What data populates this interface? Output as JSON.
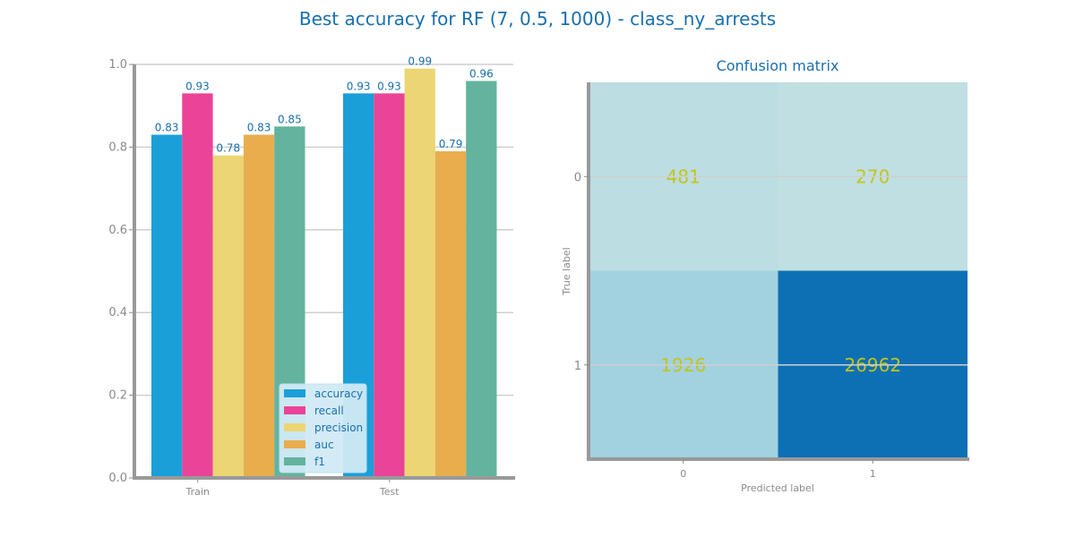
{
  "title": "Best accuracy for RF (7, 0.5, 1000) - class_ny_arrests",
  "chart_data": [
    {
      "type": "bar",
      "categories": [
        "Train",
        "Test"
      ],
      "series": [
        {
          "name": "accuracy",
          "values": [
            0.83,
            0.93
          ],
          "labels": [
            "0.83",
            "0.93"
          ],
          "color": "#1a9fd9"
        },
        {
          "name": "recall",
          "values": [
            0.93,
            0.93
          ],
          "labels": [
            "0.93",
            "0.93"
          ],
          "color": "#ea4498"
        },
        {
          "name": "precision",
          "values": [
            0.78,
            0.99
          ],
          "labels": [
            "0.78",
            "0.99"
          ],
          "color": "#ecd574"
        },
        {
          "name": "auc",
          "values": [
            0.83,
            0.79
          ],
          "labels": [
            "0.83",
            "0.79"
          ],
          "color": "#e9ad4d"
        },
        {
          "name": "f1",
          "values": [
            0.85,
            0.96
          ],
          "labels": [
            "0.85",
            "0.96"
          ],
          "color": "#63b39e"
        }
      ],
      "ylim": [
        0,
        1
      ],
      "yticks": [
        "0.0",
        "0.2",
        "0.4",
        "0.6",
        "0.8",
        "1.0"
      ],
      "grid": true,
      "legend_position": "bottom-right"
    },
    {
      "type": "heatmap",
      "title": "Confusion matrix",
      "xlabel": "Predicted label",
      "ylabel": "True label",
      "xticks": [
        "0",
        "1"
      ],
      "yticks": [
        "0",
        "1"
      ],
      "values": [
        [
          481,
          270
        ],
        [
          1926,
          26962
        ]
      ],
      "cell_colors": [
        [
          "#bcdde2",
          "#c0dfe2"
        ],
        [
          "#a2d1e0",
          "#0d70b4"
        ]
      ]
    }
  ]
}
